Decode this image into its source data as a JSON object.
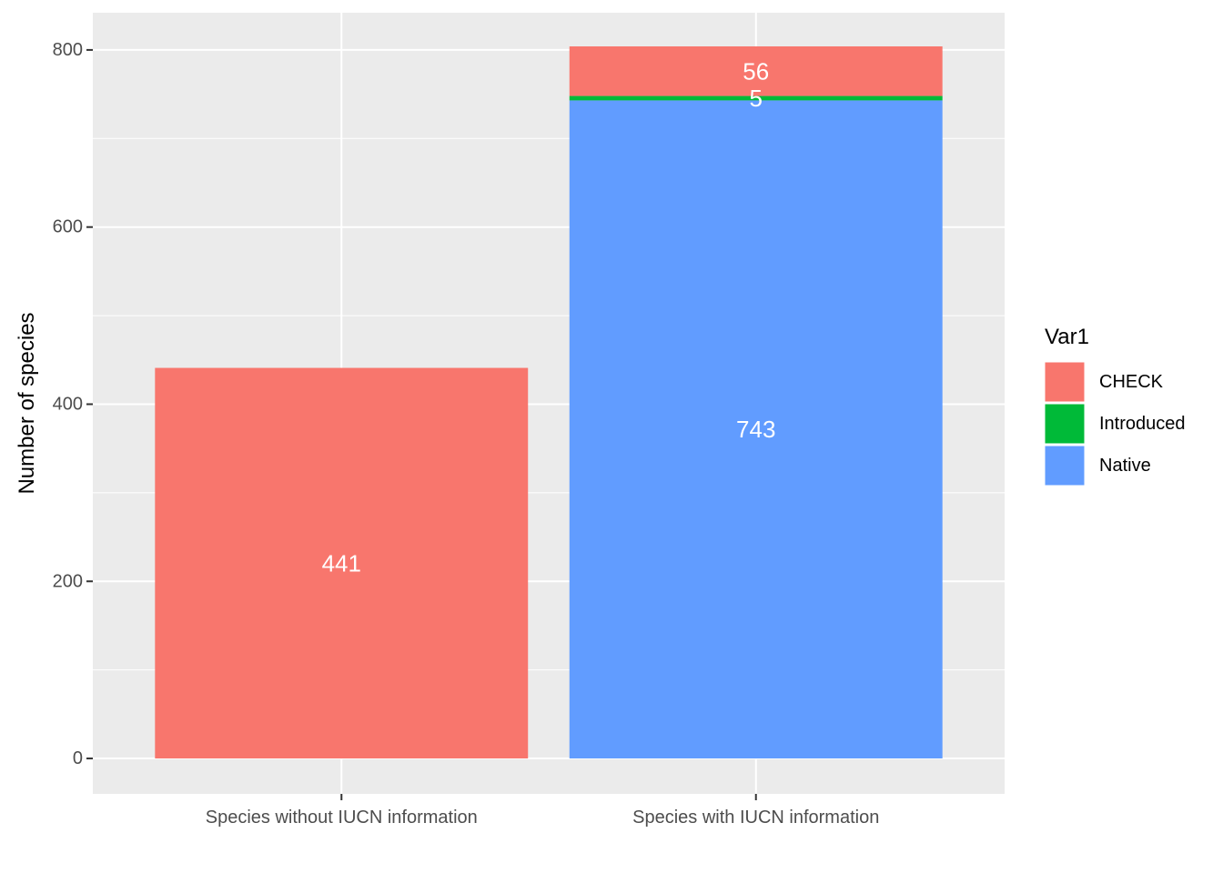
{
  "chart_data": {
    "type": "bar",
    "stacked": true,
    "categories": [
      "Species without IUCN information",
      "Species with IUCN information"
    ],
    "series": [
      {
        "name": "Native",
        "color": "#619CFF",
        "values": [
          0,
          743
        ]
      },
      {
        "name": "Introduced",
        "color": "#00BA38",
        "values": [
          0,
          5
        ]
      },
      {
        "name": "CHECK",
        "color": "#F8766D",
        "values": [
          441,
          56
        ]
      }
    ],
    "data_labels": [
      {
        "category": "Species without IUCN information",
        "series": "CHECK",
        "text": "441"
      },
      {
        "category": "Species with IUCN information",
        "series": "Native",
        "text": "743"
      },
      {
        "category": "Species with IUCN information",
        "series": "Introduced",
        "text": "5"
      },
      {
        "category": "Species with IUCN information",
        "series": "CHECK",
        "text": "56"
      }
    ],
    "xlabel": "",
    "ylabel": "Number of species",
    "ylim": [
      -40,
      842
    ],
    "yticks": [
      0,
      200,
      400,
      600,
      800
    ],
    "grid": true,
    "background": "#EBEBEB",
    "legend": {
      "title": "Var1",
      "position": "right",
      "entries": [
        {
          "label": "CHECK",
          "color": "#F8766D"
        },
        {
          "label": "Introduced",
          "color": "#00BA38"
        },
        {
          "label": "Native",
          "color": "#619CFF"
        }
      ]
    }
  }
}
